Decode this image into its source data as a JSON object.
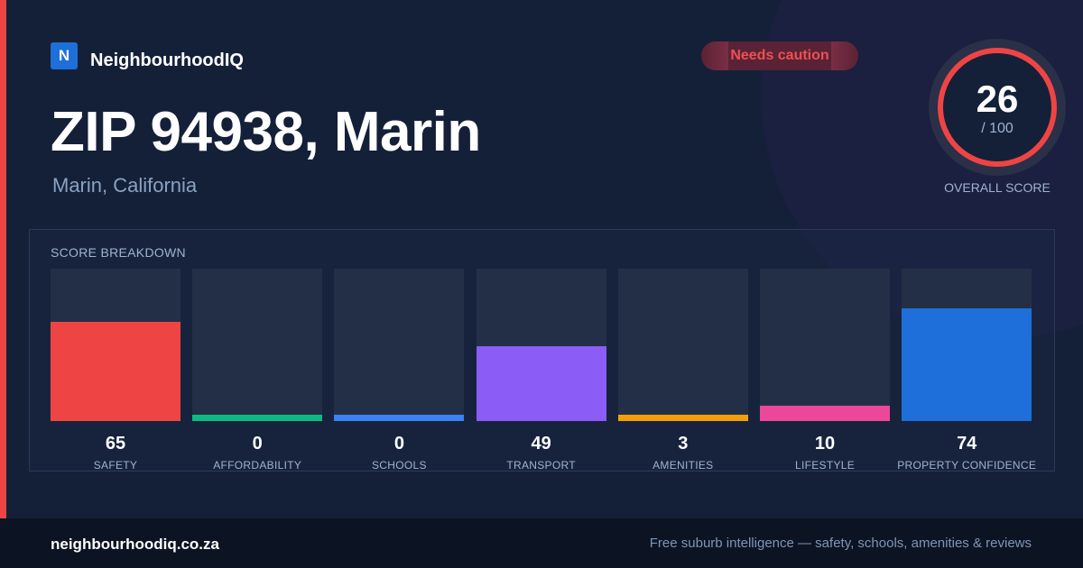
{
  "brand": {
    "logo_letter": "N",
    "name": "NeighbourhoodIQ"
  },
  "header": {
    "title": "ZIP 94938, Marin",
    "subtitle": "Marin, California"
  },
  "status_badge": {
    "label": "Needs caution",
    "color": "#ef5050"
  },
  "overall_score": {
    "value": "26",
    "max": "/ 100",
    "label": "OVERALL SCORE",
    "ring_color": "#ef4444"
  },
  "breakdown": {
    "title": "SCORE BREAKDOWN",
    "items": [
      {
        "label": "SAFETY",
        "value": "65",
        "fill": 0.65,
        "color": "#ef4444"
      },
      {
        "label": "AFFORDABILITY",
        "value": "0",
        "fill": 0.04,
        "color": "#10b981"
      },
      {
        "label": "SCHOOLS",
        "value": "0",
        "fill": 0.04,
        "color": "#3b82f6"
      },
      {
        "label": "TRANSPORT",
        "value": "49",
        "fill": 0.49,
        "color": "#8b5cf6"
      },
      {
        "label": "AMENITIES",
        "value": "3",
        "fill": 0.04,
        "color": "#f59e0b"
      },
      {
        "label": "LIFESTYLE",
        "value": "10",
        "fill": 0.1,
        "color": "#ec4899"
      },
      {
        "label": "PROPERTY CONFIDENCE",
        "value": "74",
        "fill": 0.74,
        "color": "#1e6fd9"
      }
    ]
  },
  "footer": {
    "site": "neighbourhoodiq.co.za",
    "tagline": "Free suburb intelligence — safety, schools, amenities & reviews"
  }
}
